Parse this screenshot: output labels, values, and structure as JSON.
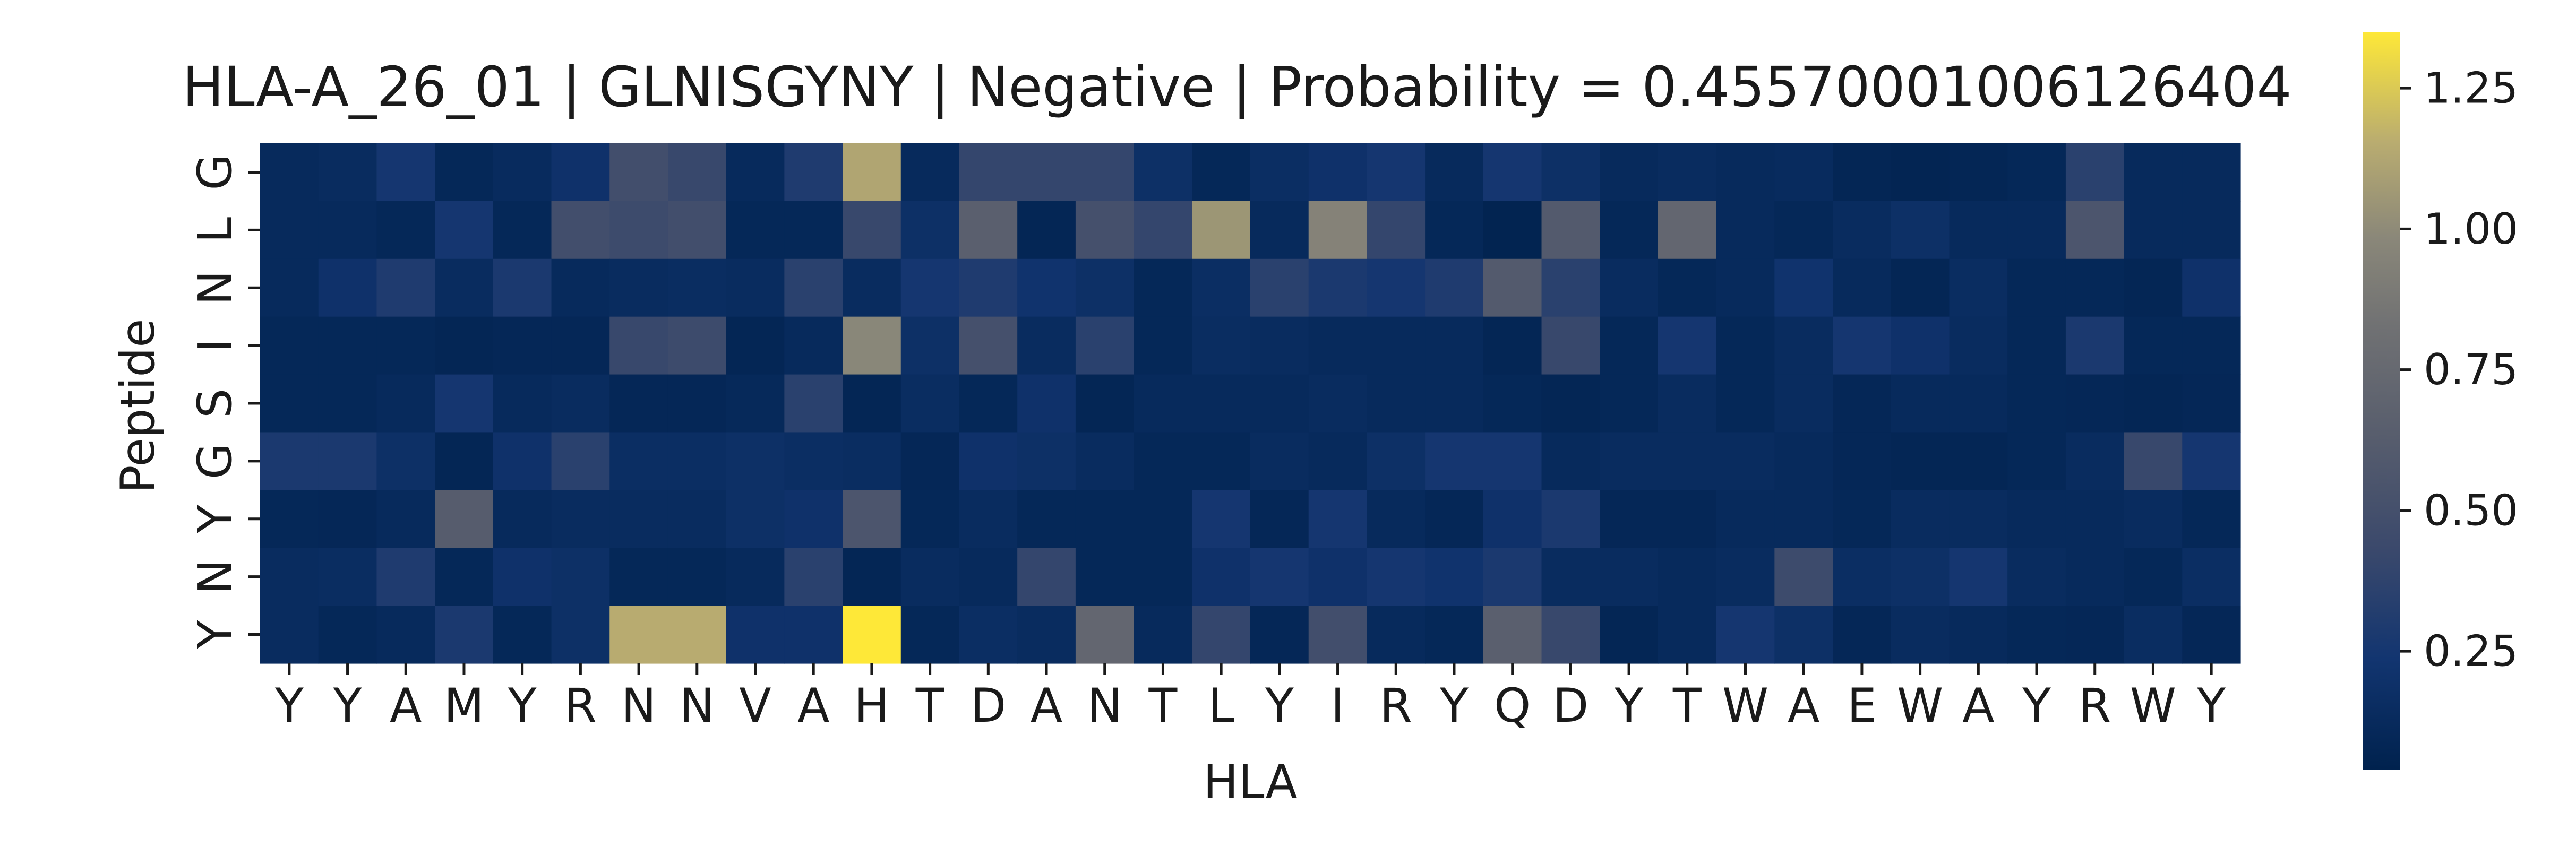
{
  "chart_data": {
    "type": "heatmap",
    "title": "HLA-A_26_01 | GLNISGYNY | Negative | Probability = 0.4557000100612640​4",
    "title_display": "HLA-A_26_01 | GLNISGYNY | Negative | Probability = 0.45570001006126404",
    "xlabel": "HLA",
    "ylabel": "Peptide",
    "x_categories": [
      "Y",
      "Y",
      "A",
      "M",
      "Y",
      "R",
      "N",
      "N",
      "V",
      "A",
      "H",
      "T",
      "D",
      "A",
      "N",
      "T",
      "L",
      "Y",
      "I",
      "R",
      "Y",
      "Q",
      "D",
      "Y",
      "T",
      "W",
      "A",
      "E",
      "W",
      "A",
      "Y",
      "R",
      "W",
      "Y"
    ],
    "y_categories": [
      "G",
      "L",
      "N",
      "I",
      "S",
      "G",
      "Y",
      "N",
      "Y"
    ],
    "colormap": "cividis",
    "colorbar": {
      "range": [
        0.04,
        1.35
      ],
      "ticks": [
        0.25,
        0.5,
        0.75,
        1.0,
        1.25
      ],
      "tick_labels": [
        "0.25",
        "0.50",
        "0.75",
        "1.00",
        "1.25"
      ]
    },
    "values": [
      [
        0.12,
        0.14,
        0.25,
        0.1,
        0.13,
        0.2,
        0.48,
        0.42,
        0.12,
        0.3,
        1.12,
        0.12,
        0.4,
        0.4,
        0.4,
        0.18,
        0.1,
        0.16,
        0.2,
        0.25,
        0.12,
        0.25,
        0.18,
        0.12,
        0.14,
        0.12,
        0.13,
        0.08,
        0.07,
        0.08,
        0.1,
        0.35,
        0.12,
        0.12
      ],
      [
        0.12,
        0.12,
        0.1,
        0.25,
        0.1,
        0.48,
        0.45,
        0.48,
        0.1,
        0.1,
        0.42,
        0.18,
        0.65,
        0.08,
        0.5,
        0.4,
        1.05,
        0.12,
        0.95,
        0.4,
        0.1,
        0.06,
        0.6,
        0.1,
        0.72,
        0.12,
        0.1,
        0.14,
        0.18,
        0.12,
        0.12,
        0.55,
        0.12,
        0.12
      ],
      [
        0.12,
        0.2,
        0.3,
        0.14,
        0.28,
        0.12,
        0.14,
        0.15,
        0.14,
        0.35,
        0.14,
        0.25,
        0.3,
        0.22,
        0.18,
        0.1,
        0.16,
        0.35,
        0.28,
        0.25,
        0.3,
        0.6,
        0.35,
        0.14,
        0.1,
        0.12,
        0.22,
        0.12,
        0.08,
        0.15,
        0.1,
        0.1,
        0.08,
        0.2
      ],
      [
        0.1,
        0.1,
        0.1,
        0.08,
        0.09,
        0.09,
        0.42,
        0.45,
        0.08,
        0.12,
        0.98,
        0.18,
        0.5,
        0.14,
        0.35,
        0.1,
        0.15,
        0.14,
        0.12,
        0.12,
        0.12,
        0.08,
        0.42,
        0.1,
        0.25,
        0.1,
        0.14,
        0.25,
        0.2,
        0.14,
        0.1,
        0.28,
        0.1,
        0.1
      ],
      [
        0.1,
        0.1,
        0.12,
        0.25,
        0.12,
        0.14,
        0.09,
        0.09,
        0.11,
        0.35,
        0.08,
        0.15,
        0.1,
        0.2,
        0.08,
        0.12,
        0.12,
        0.12,
        0.14,
        0.12,
        0.12,
        0.1,
        0.08,
        0.1,
        0.14,
        0.1,
        0.14,
        0.09,
        0.12,
        0.12,
        0.1,
        0.09,
        0.08,
        0.09
      ],
      [
        0.28,
        0.28,
        0.18,
        0.08,
        0.2,
        0.35,
        0.16,
        0.16,
        0.18,
        0.16,
        0.15,
        0.09,
        0.2,
        0.18,
        0.14,
        0.1,
        0.1,
        0.14,
        0.12,
        0.18,
        0.25,
        0.25,
        0.12,
        0.14,
        0.14,
        0.14,
        0.12,
        0.09,
        0.08,
        0.08,
        0.1,
        0.14,
        0.42,
        0.25
      ],
      [
        0.1,
        0.09,
        0.12,
        0.62,
        0.12,
        0.14,
        0.14,
        0.14,
        0.18,
        0.2,
        0.55,
        0.1,
        0.14,
        0.1,
        0.1,
        0.1,
        0.25,
        0.09,
        0.25,
        0.12,
        0.09,
        0.2,
        0.28,
        0.09,
        0.09,
        0.12,
        0.12,
        0.1,
        0.14,
        0.14,
        0.12,
        0.12,
        0.14,
        0.1
      ],
      [
        0.14,
        0.15,
        0.3,
        0.1,
        0.2,
        0.18,
        0.1,
        0.1,
        0.12,
        0.35,
        0.08,
        0.14,
        0.12,
        0.4,
        0.1,
        0.1,
        0.2,
        0.25,
        0.2,
        0.25,
        0.22,
        0.28,
        0.14,
        0.14,
        0.12,
        0.14,
        0.45,
        0.16,
        0.18,
        0.25,
        0.14,
        0.12,
        0.1,
        0.16
      ],
      [
        0.14,
        0.1,
        0.12,
        0.28,
        0.1,
        0.18,
        1.15,
        1.15,
        0.2,
        0.2,
        1.35,
        0.1,
        0.16,
        0.14,
        0.72,
        0.12,
        0.4,
        0.09,
        0.48,
        0.12,
        0.1,
        0.65,
        0.42,
        0.08,
        0.12,
        0.25,
        0.18,
        0.09,
        0.14,
        0.12,
        0.1,
        0.09,
        0.15,
        0.09
      ]
    ]
  }
}
